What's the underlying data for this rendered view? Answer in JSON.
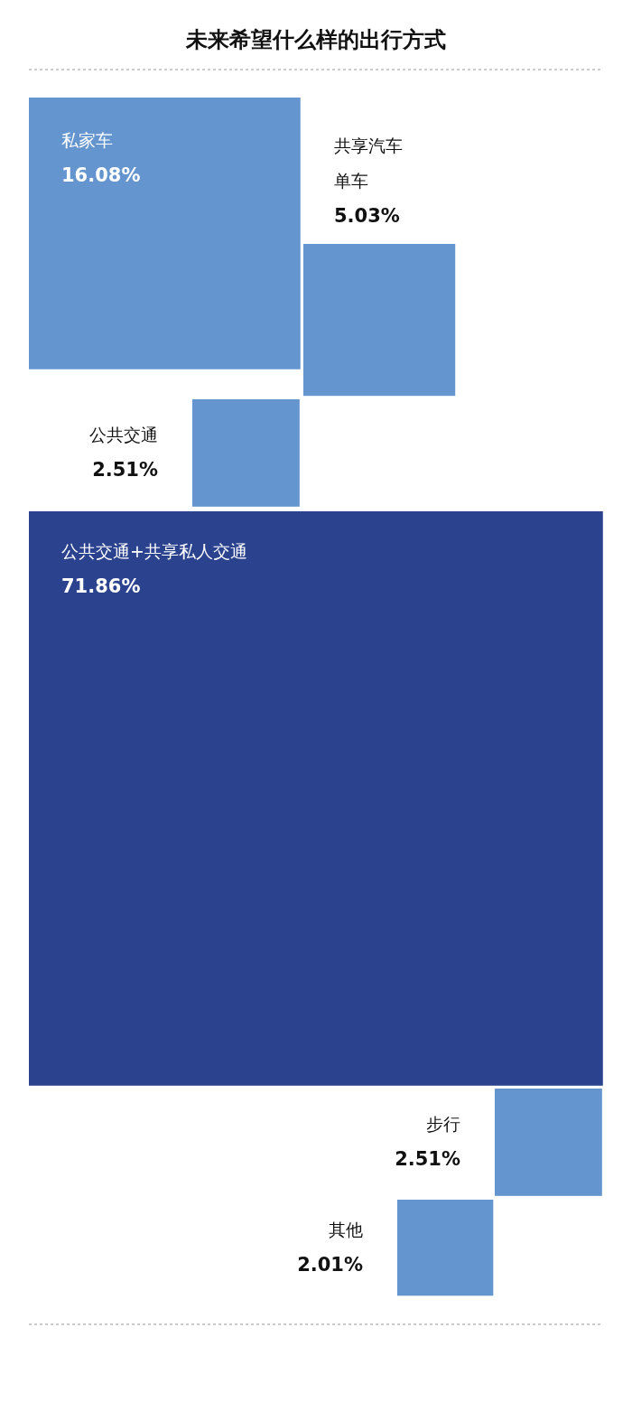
{
  "chart_data": {
    "type": "other",
    "title": "未来希望什么样的出行方式",
    "categories": [
      "私家车",
      "共享汽车单车",
      "公共交通",
      "公共交通+共享私人交通",
      "步行",
      "其他"
    ],
    "values": [
      16.08,
      5.03,
      2.51,
      71.86,
      2.51,
      2.01
    ],
    "value_labels": [
      "16.08%",
      "5.03%",
      "2.51%",
      "71.86%",
      "2.51%",
      "2.01%"
    ],
    "colors": [
      "#6495cf",
      "#6495cf",
      "#6495cf",
      "#2b428e",
      "#6495cf",
      "#6495cf"
    ]
  }
}
